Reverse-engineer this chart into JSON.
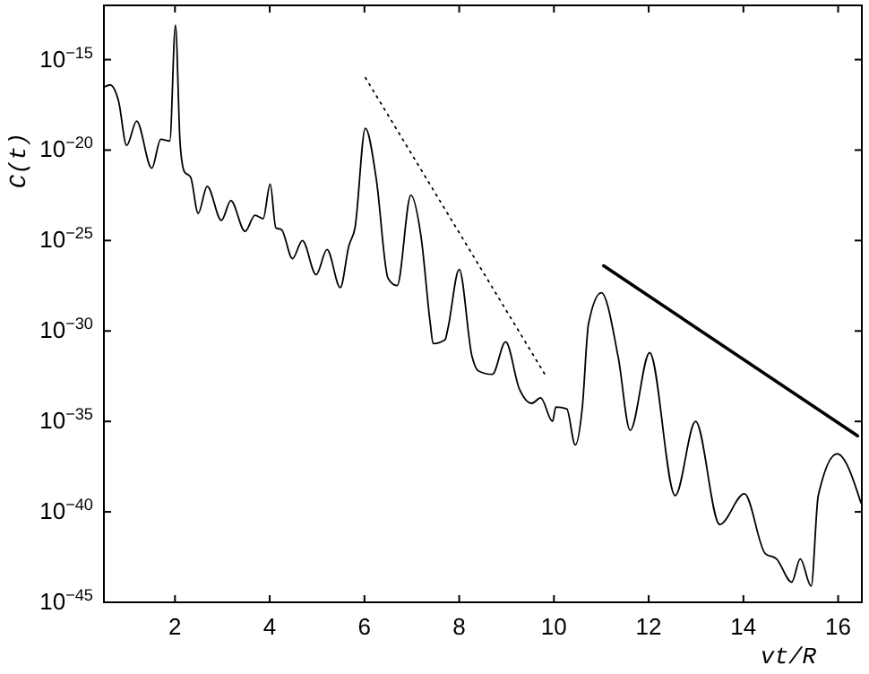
{
  "chart_data": {
    "type": "line",
    "xlabel": "vt/R",
    "ylabel": "C(t)",
    "log": "y",
    "grid": false,
    "xlim": [
      0.5,
      16.5
    ],
    "xticks": [
      2,
      4,
      6,
      8,
      10,
      12,
      14,
      16
    ],
    "ylim": [
      1e-45,
      1e-12
    ],
    "yticks": [
      {
        "value": 1e-45,
        "label": "10$^{−45}$"
      },
      {
        "value": 1e-40,
        "label": "10$^{−40}$"
      },
      {
        "value": 1e-35,
        "label": "10$^{−35}$"
      },
      {
        "value": 1e-30,
        "label": "10$^{−30}$"
      },
      {
        "value": 1e-25,
        "label": "10$^{−25}$"
      },
      {
        "value": 1e-20,
        "label": "10$^{−20}$"
      },
      {
        "value": 1e-15,
        "label": "10$^{−15}$"
      }
    ],
    "series": [
      {
        "color": "#000000",
        "line_style": "solid",
        "x": [
          0.52,
          0.63,
          0.81,
          0.98,
          1.19,
          1.51,
          1.7,
          1.89,
          2.01,
          2.11,
          2.2,
          2.33,
          2.49,
          2.68,
          2.98,
          3.18,
          3.48,
          3.69,
          3.86,
          4.01,
          4.13,
          4.25,
          4.48,
          4.69,
          4.98,
          5.21,
          5.49,
          5.67,
          5.8,
          6.02,
          6.25,
          6.5,
          6.69,
          6.98,
          7.2,
          7.39,
          7.45,
          7.7,
          7.76,
          8.0,
          8.27,
          8.4,
          8.7,
          8.98,
          9.27,
          9.53,
          9.72,
          9.97,
          10.04,
          10.27,
          10.45,
          10.6,
          10.73,
          11.0,
          11.36,
          11.61,
          12.02,
          12.56,
          12.99,
          13.5,
          14.02,
          14.46,
          14.7,
          15.02,
          15.2,
          15.43,
          15.58,
          15.98,
          16.48
        ],
        "values": [
          3.2e-17,
          4e-17,
          5e-18,
          1.8e-20,
          4e-19,
          1e-21,
          4e-20,
          3.2e-20,
          7.9e-14,
          2e-20,
          6.3e-22,
          3.2e-22,
          3.2e-24,
          1e-22,
          1.3e-24,
          1.6e-23,
          3.2e-25,
          2.5e-24,
          1.6e-24,
          1.3e-22,
          5e-25,
          4e-25,
          1e-26,
          1e-25,
          1.3e-27,
          3.2e-26,
          2.5e-28,
          5e-26,
          5e-25,
          1.6e-19,
          2.5e-22,
          7.9e-28,
          3.2e-28,
          3.2e-23,
          1.3e-25,
          2.5e-30,
          2e-31,
          3.2e-31,
          1.3e-30,
          2.5e-27,
          4e-32,
          6.3e-33,
          4e-33,
          2.5e-31,
          6.3e-34,
          1e-34,
          2e-34,
          1e-35,
          6.3e-35,
          5e-35,
          5e-37,
          6.3e-35,
          2.5e-30,
          1.3e-28,
          3.2e-32,
          3.2e-36,
          6.3e-32,
          7.9e-40,
          1e-35,
          2e-41,
          1e-39,
          5e-43,
          2.5e-43,
          1.3e-44,
          2.5e-43,
          7.9e-45,
          7.9e-40,
          1.6e-37,
          3.2e-40
        ]
      },
      {
        "color": "#000000",
        "line_style": "dotted",
        "x": [
          6.02,
          9.81
        ],
        "values": [
          1e-16,
          4e-33
        ]
      },
      {
        "color": "#000000",
        "line_style": "solid",
        "x": [
          11.05,
          16.41
        ],
        "values": [
          4e-27,
          1.6e-36
        ]
      }
    ]
  }
}
